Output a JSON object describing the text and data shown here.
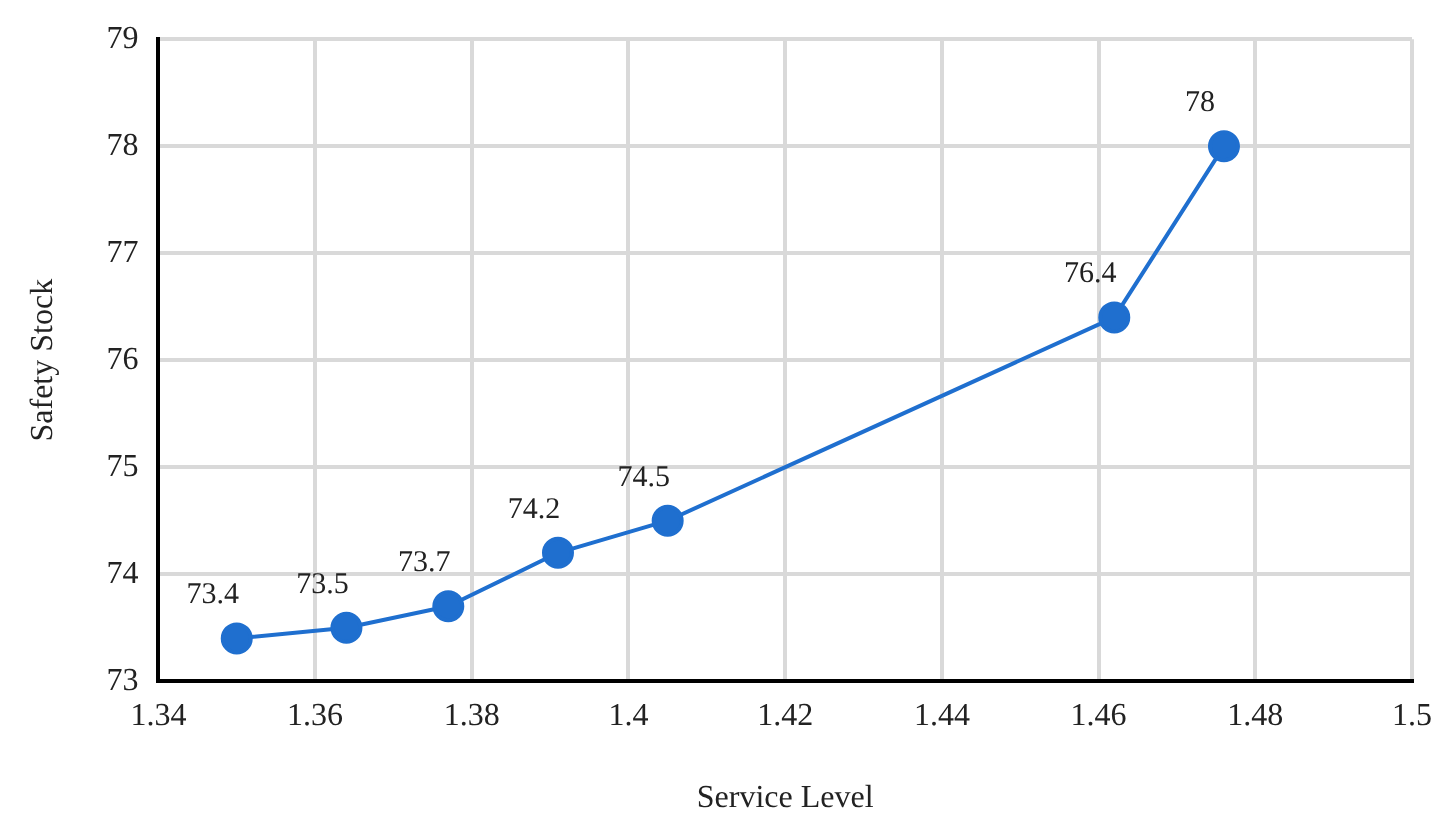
{
  "chart_data": {
    "type": "line",
    "xlabel": "Service Level",
    "ylabel": "Safety Stock",
    "x": [
      1.35,
      1.364,
      1.377,
      1.391,
      1.405,
      1.462,
      1.476
    ],
    "series": [
      {
        "color": "#1f6fcf",
        "values": [
          73.4,
          73.5,
          73.7,
          74.2,
          74.5,
          76.4,
          78
        ]
      }
    ],
    "xlim": [
      1.34,
      1.5
    ],
    "xticks": [
      1.34,
      1.36,
      1.38,
      1.4,
      1.42,
      1.44,
      1.46,
      1.48,
      1.5
    ],
    "ylim": [
      73,
      79
    ],
    "yticks": [
      73,
      74,
      75,
      76,
      77,
      78,
      79
    ],
    "grid": true,
    "legend": false,
    "marker": "circle",
    "line_style": "solid",
    "data_labels": true
  }
}
